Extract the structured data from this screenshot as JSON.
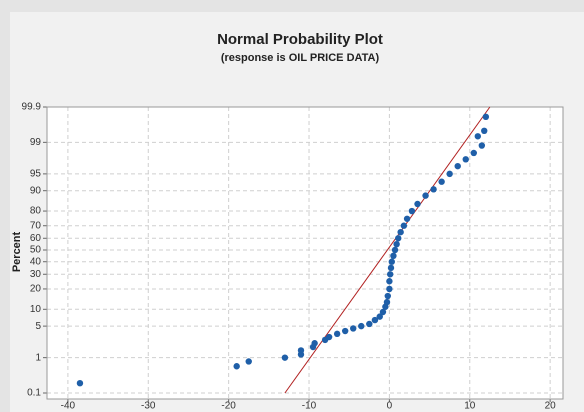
{
  "chart_data": {
    "type": "scatter",
    "title": "Normal Probability Plot",
    "subtitle": "(response is OIL PRICE DATA)",
    "ylabel": "Percent",
    "yscale": "probability",
    "grid": true,
    "color": "#1f5fa8",
    "fit_color": "#b22222",
    "x": [
      -38.5,
      -19,
      -17.5,
      -13,
      -11,
      -11,
      -9.5,
      -9.3,
      -8,
      -7.5,
      -6.5,
      -5.5,
      -4.5,
      -3.5,
      -2.5,
      -1.8,
      -1.2,
      -0.8,
      -0.5,
      -0.3,
      -0.2,
      0,
      0,
      0.1,
      0.2,
      0.3,
      0.5,
      0.7,
      0.9,
      1.1,
      1.4,
      1.8,
      2.2,
      2.8,
      3.5,
      4.5,
      5.5,
      6.5,
      7.5,
      8.5,
      9.5,
      10.5,
      11.5,
      11,
      11.8,
      12
    ],
    "values": [
      0.2,
      0.6,
      0.8,
      1.0,
      1.2,
      1.5,
      1.8,
      2.2,
      2.6,
      3,
      3.5,
      4,
      4.5,
      5,
      5.5,
      6.5,
      7.5,
      9,
      11,
      13,
      16,
      20,
      25,
      30,
      35,
      40,
      45,
      50,
      55,
      60,
      65,
      70,
      75,
      80,
      84,
      88,
      90.5,
      93,
      95,
      96.5,
      97.5,
      98.2,
      98.8,
      99.3,
      99.5,
      99.8
    ],
    "fit_line": {
      "x": [
        -13,
        12.5
      ],
      "y": [
        0.1,
        99.9
      ]
    },
    "xlim": [
      -42.6,
      21.6
    ],
    "xticks": [
      -40,
      -30,
      -20,
      -10,
      0,
      10,
      20
    ],
    "ylim": [
      0.1,
      99.9
    ],
    "yticks": [
      0.1,
      1,
      5,
      10,
      20,
      30,
      40,
      50,
      60,
      70,
      80,
      90,
      95,
      99,
      99.9
    ]
  }
}
